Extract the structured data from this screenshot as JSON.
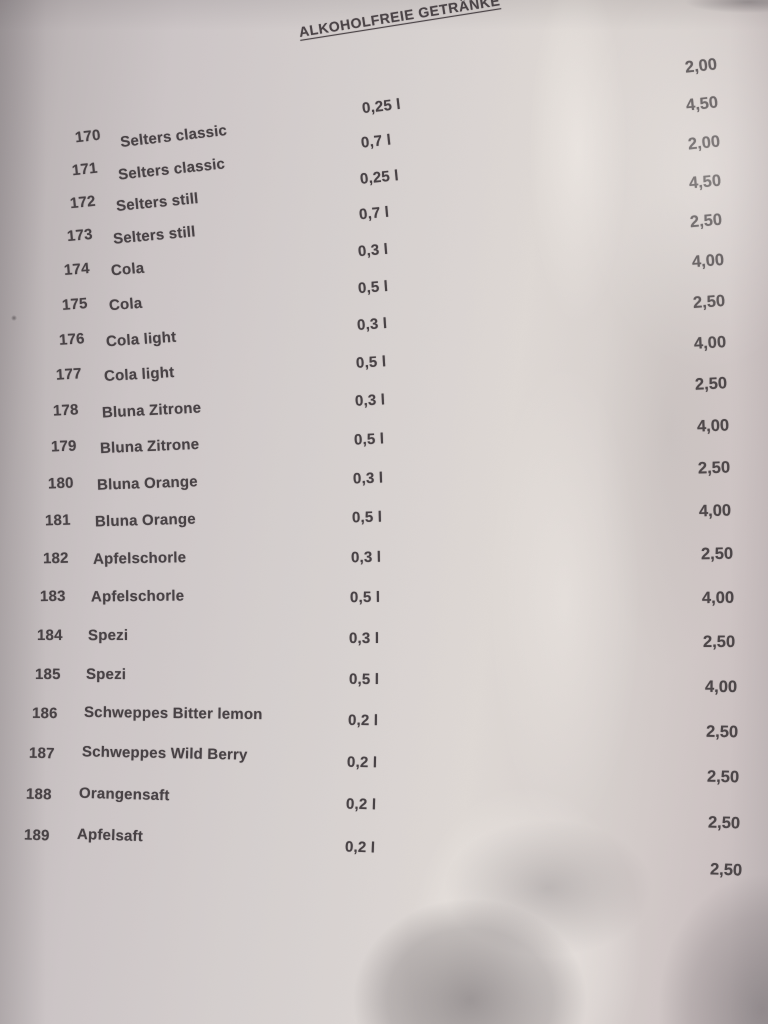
{
  "title": "ALKOHOLFREIE GETRÄNKE",
  "menu": {
    "items": [
      {
        "no": "170",
        "name": "Selters classic",
        "size": "0,25 l",
        "price": "2,00"
      },
      {
        "no": "171",
        "name": "Selters classic",
        "size": "0,7 l",
        "price": "4,50"
      },
      {
        "no": "172",
        "name": "Selters still",
        "size": "0,25 l",
        "price": "2,00"
      },
      {
        "no": "173",
        "name": "Selters still",
        "size": "0,7 l",
        "price": "4,50"
      },
      {
        "no": "174",
        "name": "Cola",
        "size": "0,3 l",
        "price": "2,50"
      },
      {
        "no": "175",
        "name": "Cola",
        "size": "0,5 l",
        "price": "4,00"
      },
      {
        "no": "176",
        "name": "Cola light",
        "size": "0,3 l",
        "price": "2,50"
      },
      {
        "no": "177",
        "name": "Cola light",
        "size": "0,5 l",
        "price": "4,00"
      },
      {
        "no": "178",
        "name": "Bluna Zitrone",
        "size": "0,3 l",
        "price": "2,50"
      },
      {
        "no": "179",
        "name": "Bluna Zitrone",
        "size": "0,5 l",
        "price": "4,00"
      },
      {
        "no": "180",
        "name": "Bluna Orange",
        "size": "0,3 l",
        "price": "2,50"
      },
      {
        "no": "181",
        "name": "Bluna Orange",
        "size": "0,5 l",
        "price": "4,00"
      },
      {
        "no": "182",
        "name": "Apfelschorle",
        "size": "0,3 l",
        "price": "2,50"
      },
      {
        "no": "183",
        "name": "Apfelschorle",
        "size": "0,5 l",
        "price": "4,00"
      },
      {
        "no": "184",
        "name": "Spezi",
        "size": "0,3 l",
        "price": "2,50"
      },
      {
        "no": "185",
        "name": "Spezi",
        "size": "0,5 l",
        "price": "4,00"
      },
      {
        "no": "186",
        "name": "Schweppes Bitter lemon",
        "size": "0,2 l",
        "price": "2,50"
      },
      {
        "no": "187",
        "name": "Schweppes Wild Berry",
        "size": "0,2 l",
        "price": "2,50"
      },
      {
        "no": "188",
        "name": "Orangensaft",
        "size": "0,2 l",
        "price": "2,50"
      },
      {
        "no": "189",
        "name": "Apfelsaft",
        "size": "0,2 l",
        "price": "2,50"
      }
    ]
  },
  "colors": {
    "paper_light": "#ded8d4",
    "paper_mid": "#cdc6c7",
    "paper_dark": "#a8a1a3",
    "shadow": "#564e52",
    "glare": "#fffaf5",
    "text": "#474144"
  }
}
